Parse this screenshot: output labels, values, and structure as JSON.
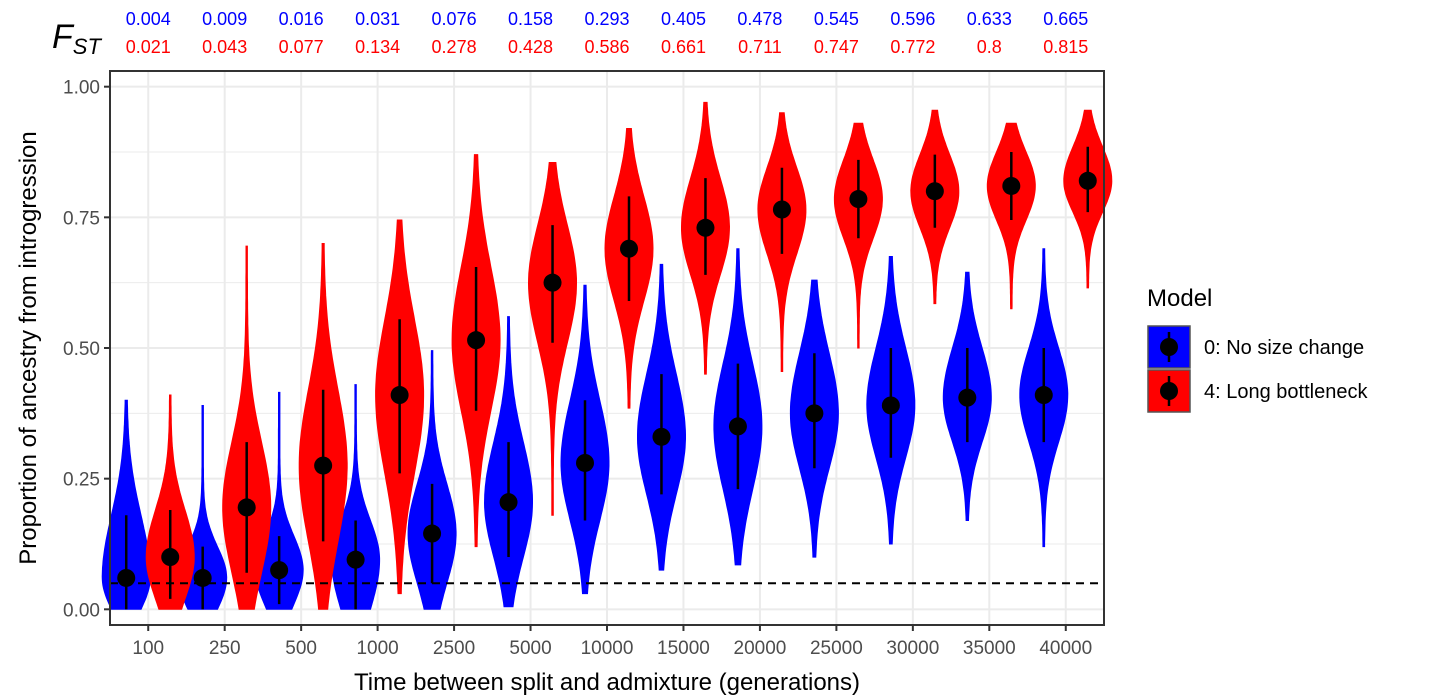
{
  "chart_data": {
    "type": "violin",
    "xlabel": "Time between split and admixture (generations)",
    "ylabel": "Proportion of ancestry from introgression",
    "ylim": [
      -0.03,
      1.03
    ],
    "yticks": [
      "0.00",
      "0.25",
      "0.50",
      "0.75",
      "1.00"
    ],
    "ytick_values": [
      0,
      0.25,
      0.5,
      0.75,
      1.0
    ],
    "grid": true,
    "reference_line": 0.05,
    "categories": [
      "100",
      "250",
      "500",
      "1000",
      "2500",
      "5000",
      "10000",
      "15000",
      "20000",
      "25000",
      "30000",
      "35000",
      "40000"
    ],
    "fst_label_main": "F",
    "fst_label_sub": "ST",
    "fst_row1": [
      "0.004",
      "0.009",
      "0.016",
      "0.031",
      "0.076",
      "0.158",
      "0.293",
      "0.405",
      "0.478",
      "0.545",
      "0.596",
      "0.633",
      "0.665"
    ],
    "fst_row2": [
      "0.021",
      "0.043",
      "0.077",
      "0.134",
      "0.278",
      "0.428",
      "0.586",
      "0.661",
      "0.711",
      "0.747",
      "0.772",
      "0.8",
      "0.815"
    ],
    "legend_title": "Model",
    "legend_position": "right",
    "series": [
      {
        "name": "0: No size change",
        "color": "#0000ff",
        "medians": [
          0.06,
          0.06,
          0.075,
          0.095,
          0.145,
          0.205,
          0.28,
          0.33,
          0.35,
          0.375,
          0.39,
          0.405,
          0.41
        ],
        "min": [
          0.0,
          0.0,
          0.0,
          0.0,
          0.0,
          0.005,
          0.03,
          0.075,
          0.085,
          0.1,
          0.125,
          0.17,
          0.12
        ],
        "max": [
          0.4,
          0.39,
          0.415,
          0.43,
          0.495,
          0.56,
          0.62,
          0.66,
          0.69,
          0.63,
          0.675,
          0.645,
          0.69
        ],
        "q_low": [
          0.0,
          0.0,
          0.01,
          0.0,
          0.05,
          0.1,
          0.17,
          0.22,
          0.23,
          0.27,
          0.29,
          0.32,
          0.32
        ],
        "q_high": [
          0.18,
          0.12,
          0.14,
          0.17,
          0.24,
          0.32,
          0.4,
          0.45,
          0.47,
          0.49,
          0.5,
          0.5,
          0.5
        ]
      },
      {
        "name": "4: Long bottleneck",
        "color": "#ff0000",
        "medians": [
          0.1,
          0.195,
          0.275,
          0.41,
          0.515,
          0.625,
          0.69,
          0.73,
          0.765,
          0.785,
          0.8,
          0.81,
          0.82
        ],
        "min": [
          0.0,
          0.0,
          0.0,
          0.03,
          0.12,
          0.18,
          0.385,
          0.45,
          0.455,
          0.5,
          0.585,
          0.575,
          0.615
        ],
        "max": [
          0.41,
          0.695,
          0.7,
          0.745,
          0.87,
          0.855,
          0.92,
          0.97,
          0.95,
          0.93,
          0.955,
          0.93,
          0.955
        ],
        "q_low": [
          0.02,
          0.07,
          0.13,
          0.26,
          0.38,
          0.51,
          0.59,
          0.64,
          0.68,
          0.71,
          0.73,
          0.745,
          0.76
        ],
        "q_high": [
          0.19,
          0.32,
          0.42,
          0.555,
          0.655,
          0.735,
          0.79,
          0.825,
          0.845,
          0.86,
          0.87,
          0.875,
          0.885
        ]
      }
    ]
  }
}
